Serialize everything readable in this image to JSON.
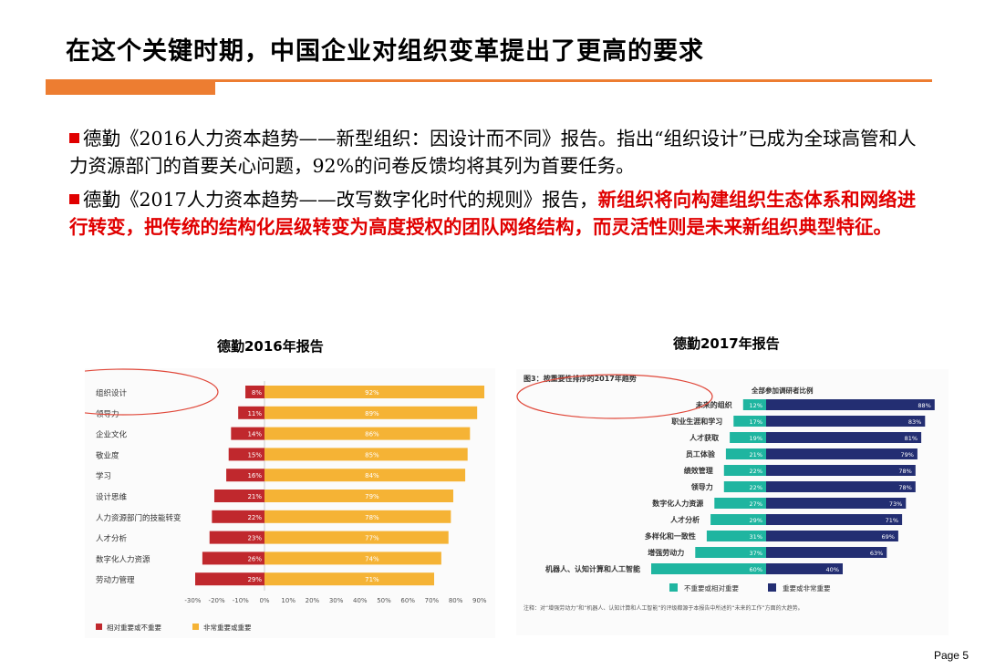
{
  "title": "在这个关键时期，中国企业对组织变革提出了更高的要求",
  "paragraphs": {
    "p1": "德勤《2016人力资本趋势——新型组织：因设计而不同》报告。指出“组织设计”已成为全球高管和人力资源部门的首要关心问题，92%的问卷反馈均将其列为首要任务。",
    "p2_normal": "德勤《2017人力资本趋势——改写数字化时代的规则》报告，",
    "p2_red": "新组织将向构建组织生态体系和网络进行转变，把传统的结构化层级转变为高度授权的团队网络结构，而灵活性则是未来新组织典型特征。"
  },
  "captions": {
    "left": "德勤2016年报告",
    "right": "德勤2017年报告"
  },
  "page_number": "Page 5",
  "colors": {
    "accent": "#ED7D31",
    "bullet_red": "#E00000",
    "c2016_neg": "#C0282D",
    "c2016_pos": "#F5B335",
    "c2017_neg": "#1FB5A0",
    "c2017_pos": "#232E72",
    "circle": "#E0483A"
  },
  "chart_data": [
    {
      "type": "bar",
      "orientation": "horizontal-diverging",
      "categories": [
        "组织设计",
        "领导力",
        "企业文化",
        "敬业度",
        "学习",
        "设计思维",
        "人力资源部门的技能转变",
        "人才分析",
        "数字化人力资源",
        "劳动力管理"
      ],
      "series": [
        {
          "name": "相对重要或不重要",
          "values": [
            -8,
            -11,
            -14,
            -15,
            -16,
            -21,
            -22,
            -23,
            -26,
            -29
          ],
          "labels": [
            "8%",
            "11%",
            "14%",
            "15%",
            "16%",
            "21%",
            "22%",
            "23%",
            "26%",
            "29%"
          ]
        },
        {
          "name": "非常重要或重要",
          "values": [
            92,
            89,
            86,
            85,
            84,
            79,
            78,
            77,
            74,
            71
          ],
          "labels": [
            "92%",
            "89%",
            "86%",
            "85%",
            "84%",
            "79%",
            "78%",
            "77%",
            "74%",
            "71%"
          ]
        }
      ],
      "xlim": [
        -30,
        90
      ],
      "xticks": [
        "-30%",
        "-20%",
        "-10%",
        "0%",
        "10%",
        "20%",
        "30%",
        "40%",
        "50%",
        "60%",
        "70%",
        "80%",
        "90%"
      ],
      "highlight": "组织设计"
    },
    {
      "type": "bar",
      "orientation": "horizontal-diverging",
      "title": "图3：按重要性排序的2017年趋势",
      "subtitle": "全部参加调研者比例",
      "categories": [
        "未来的组织",
        "职业生涯和学习",
        "人才获取",
        "员工体验",
        "绩效管理",
        "领导力",
        "数字化人力资源",
        "人才分析",
        "多样化和一致性",
        "增强劳动力",
        "机器人、认知计算和人工智能"
      ],
      "series": [
        {
          "name": "不重要或相对重要",
          "values": [
            12,
            17,
            19,
            21,
            22,
            22,
            27,
            29,
            31,
            37,
            60
          ],
          "labels": [
            "12%",
            "17%",
            "19%",
            "21%",
            "22%",
            "22%",
            "27%",
            "29%",
            "31%",
            "37%",
            "60%"
          ]
        },
        {
          "name": "重要或非常重要",
          "values": [
            88,
            83,
            81,
            79,
            78,
            78,
            73,
            71,
            69,
            63,
            40
          ],
          "labels": [
            "88%",
            "83%",
            "81%",
            "79%",
            "78%",
            "78%",
            "73%",
            "71%",
            "69%",
            "63%",
            "40%"
          ]
        }
      ],
      "note": "注释：对“增强劳动力”和“机器人、认知计算和人工智能”的评级都源于本报告中所述的“未来的工作”方面的大趋势。",
      "highlight": "未来的组织"
    }
  ]
}
